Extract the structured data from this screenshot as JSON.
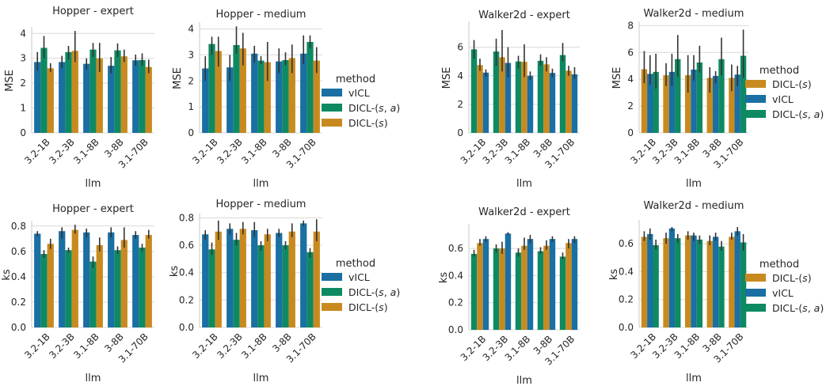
{
  "colors": {
    "vICL": "#1a6fa3",
    "DICL-(s,a)": "#0e8a63",
    "DICL-(s)": "#c88a1f",
    "err": "#333333",
    "grid": "#d9d9d9",
    "axis": "#c8c8c8"
  },
  "legend_title": "method",
  "legend_labels": {
    "vICL": "vICL",
    "DICL-(s,a)": "DICL-(s,a)",
    "DICL-(s)": "DICL-(s)"
  },
  "chart_data": [
    {
      "type": "bar",
      "title": "Hopper - expert",
      "xlabel": "llm",
      "ylabel": "MSE",
      "ylim": [
        0,
        4.2
      ],
      "yticks": [
        "0",
        "1",
        "2",
        "3",
        "4"
      ],
      "categories": [
        "3.2-1B",
        "3.2-3B",
        "3.1-8B",
        "3-8B",
        "3.1-70B"
      ],
      "series_order": [
        "vICL",
        "DICL-(s,a)",
        "DICL-(s)"
      ],
      "series": [
        {
          "key": "vICL",
          "values": [
            2.85,
            2.85,
            2.78,
            2.7,
            2.92
          ],
          "err": [
            [
              2.5,
              3.25
            ],
            [
              2.6,
              3.1
            ],
            [
              2.55,
              3.0
            ],
            [
              2.4,
              3.05
            ],
            [
              2.7,
              3.15
            ]
          ]
        },
        {
          "key": "DICL-(s,a)",
          "values": [
            3.42,
            3.25,
            3.35,
            3.32,
            2.93
          ],
          "err": [
            [
              3.0,
              3.9
            ],
            [
              2.95,
              3.5
            ],
            [
              3.05,
              3.62
            ],
            [
              3.05,
              3.6
            ],
            [
              2.7,
              3.2
            ]
          ]
        },
        {
          "key": "DICL-(s)",
          "values": [
            2.6,
            3.3,
            3.0,
            3.08,
            2.65
          ],
          "err": [
            [
              2.45,
              2.8
            ],
            [
              2.85,
              4.1
            ],
            [
              2.45,
              3.62
            ],
            [
              2.85,
              3.35
            ],
            [
              2.4,
              2.95
            ]
          ]
        }
      ]
    },
    {
      "type": "bar",
      "title": "Hopper - medium",
      "xlabel": "llm",
      "ylabel": "MSE",
      "ylim": [
        0,
        4.2
      ],
      "yticks": [
        "0",
        "1",
        "2",
        "3",
        "4"
      ],
      "categories": [
        "3.2-1B",
        "3.2-3B",
        "3.1-8B",
        "3-8B",
        "3.1-70B"
      ],
      "series_order": [
        "vICL",
        "DICL-(s,a)",
        "DICL-(s)"
      ],
      "series": [
        {
          "key": "vICL",
          "values": [
            2.48,
            2.52,
            3.05,
            2.75,
            3.05
          ],
          "err": [
            [
              2.0,
              2.95
            ],
            [
              2.0,
              3.0
            ],
            [
              2.7,
              3.35
            ],
            [
              2.3,
              3.25
            ],
            [
              2.65,
              3.75
            ]
          ]
        },
        {
          "key": "DICL-(s,a)",
          "values": [
            3.42,
            3.38,
            2.78,
            2.8,
            3.5
          ],
          "err": [
            [
              3.0,
              3.7
            ],
            [
              3.05,
              4.1
            ],
            [
              2.65,
              2.95
            ],
            [
              2.6,
              3.1
            ],
            [
              3.25,
              3.75
            ]
          ]
        },
        {
          "key": "DICL-(s)",
          "values": [
            3.15,
            3.25,
            2.72,
            2.88,
            2.78
          ],
          "err": [
            [
              2.55,
              3.7
            ],
            [
              2.6,
              3.85
            ],
            [
              2.0,
              3.5
            ],
            [
              2.3,
              3.4
            ],
            [
              2.3,
              3.3
            ]
          ]
        }
      ]
    },
    {
      "type": "bar",
      "title": "Walker2d - expert",
      "xlabel": "llm",
      "ylabel": "MSE",
      "ylim": [
        0,
        7.7
      ],
      "yticks": [
        "0",
        "2",
        "4",
        "6"
      ],
      "categories": [
        "3.2-1B",
        "3.2-3B",
        "3.1-8B",
        "3-8B",
        "3.1-70B"
      ],
      "series_order": [
        "DICL-(s,a)",
        "DICL-(s)",
        "vICL"
      ],
      "series": [
        {
          "key": "DICL-(s,a)",
          "values": [
            5.85,
            5.7,
            5.0,
            5.05,
            5.45
          ],
          "err": [
            [
              5.2,
              6.5
            ],
            [
              4.7,
              6.6
            ],
            [
              4.5,
              5.4
            ],
            [
              4.7,
              5.5
            ],
            [
              5.0,
              6.3
            ]
          ]
        },
        {
          "key": "DICL-(s)",
          "values": [
            4.75,
            5.3,
            4.98,
            4.8,
            4.35
          ],
          "err": [
            [
              4.35,
              5.2
            ],
            [
              4.3,
              7.2
            ],
            [
              3.9,
              6.2
            ],
            [
              4.3,
              5.3
            ],
            [
              4.0,
              4.7
            ]
          ]
        },
        {
          "key": "vICL",
          "values": [
            4.22,
            4.9,
            4.0,
            4.2,
            4.1
          ],
          "err": [
            [
              3.95,
              4.45
            ],
            [
              3.9,
              6.0
            ],
            [
              3.7,
              4.3
            ],
            [
              3.9,
              4.5
            ],
            [
              3.8,
              4.6
            ]
          ]
        }
      ]
    },
    {
      "type": "bar",
      "title": "Walker2d - medium",
      "xlabel": "llm",
      "ylabel": "MSE",
      "ylim": [
        0,
        8.2
      ],
      "yticks": [
        "0",
        "2",
        "4",
        "6",
        "8"
      ],
      "categories": [
        "3.2-1B",
        "3.2-3B",
        "3.1-8B",
        "3-8B",
        "3.1-70B"
      ],
      "series_order": [
        "DICL-(s)",
        "vICL",
        "DICL-(s,a)"
      ],
      "series": [
        {
          "key": "DICL-(s)",
          "values": [
            4.75,
            4.3,
            4.3,
            4.1,
            4.1
          ],
          "err": [
            [
              3.7,
              6.1
            ],
            [
              3.5,
              5.2
            ],
            [
              3.0,
              5.8
            ],
            [
              3.0,
              4.9
            ],
            [
              3.1,
              5.1
            ]
          ]
        },
        {
          "key": "vICL",
          "values": [
            4.4,
            4.55,
            4.72,
            4.25,
            4.35
          ],
          "err": [
            [
              3.6,
              5.8
            ],
            [
              3.5,
              5.9
            ],
            [
              3.9,
              5.8
            ],
            [
              3.7,
              4.6
            ],
            [
              3.5,
              5.0
            ]
          ]
        },
        {
          "key": "DICL-(s,a)",
          "values": [
            4.55,
            5.5,
            5.25,
            5.5,
            5.75
          ],
          "err": [
            [
              3.3,
              5.9
            ],
            [
              4.2,
              7.3
            ],
            [
              4.5,
              6.5
            ],
            [
              4.3,
              7.1
            ],
            [
              4.1,
              7.7
            ]
          ]
        }
      ]
    },
    {
      "type": "bar",
      "title": "Hopper - expert",
      "xlabel": "llm",
      "ylabel": "ks",
      "ylim": [
        0,
        0.83
      ],
      "yticks": [
        "0.0",
        "0.2",
        "0.4",
        "0.6",
        "0.8"
      ],
      "categories": [
        "3.2-1B",
        "3.2-3B",
        "3.1-8B",
        "3-8B",
        "3.1-70B"
      ],
      "series_order": [
        "vICL",
        "DICL-(s,a)",
        "DICL-(s)"
      ],
      "series": [
        {
          "key": "vICL",
          "values": [
            0.74,
            0.76,
            0.75,
            0.75,
            0.73
          ],
          "err": [
            [
              0.72,
              0.76
            ],
            [
              0.7,
              0.79
            ],
            [
              0.71,
              0.78
            ],
            [
              0.71,
              0.79
            ],
            [
              0.7,
              0.76
            ]
          ]
        },
        {
          "key": "DICL-(s,a)",
          "values": [
            0.58,
            0.61,
            0.52,
            0.61,
            0.63
          ],
          "err": [
            [
              0.55,
              0.61
            ],
            [
              0.59,
              0.63
            ],
            [
              0.47,
              0.56
            ],
            [
              0.58,
              0.64
            ],
            [
              0.6,
              0.66
            ]
          ]
        },
        {
          "key": "DICL-(s)",
          "values": [
            0.66,
            0.77,
            0.65,
            0.69,
            0.73
          ],
          "err": [
            [
              0.62,
              0.7
            ],
            [
              0.74,
              0.81
            ],
            [
              0.6,
              0.71
            ],
            [
              0.63,
              0.79
            ],
            [
              0.7,
              0.77
            ]
          ]
        }
      ]
    },
    {
      "type": "bar",
      "title": "Hopper - medium",
      "xlabel": "llm",
      "ylabel": "ks",
      "ylim": [
        0,
        0.82
      ],
      "yticks": [
        "0.0",
        "0.2",
        "0.4",
        "0.6",
        "0.8"
      ],
      "categories": [
        "3.2-1B",
        "3.2-3B",
        "3.1-8B",
        "3-8B",
        "3.1-70B"
      ],
      "series_order": [
        "vICL",
        "DICL-(s,a)",
        "DICL-(s)"
      ],
      "series": [
        {
          "key": "vICL",
          "values": [
            0.68,
            0.72,
            0.71,
            0.69,
            0.76
          ],
          "err": [
            [
              0.64,
              0.71
            ],
            [
              0.68,
              0.76
            ],
            [
              0.66,
              0.77
            ],
            [
              0.66,
              0.72
            ],
            [
              0.74,
              0.78
            ]
          ]
        },
        {
          "key": "DICL-(s,a)",
          "values": [
            0.57,
            0.64,
            0.6,
            0.6,
            0.55
          ],
          "err": [
            [
              0.53,
              0.62
            ],
            [
              0.6,
              0.69
            ],
            [
              0.56,
              0.63
            ],
            [
              0.57,
              0.63
            ],
            [
              0.51,
              0.58
            ]
          ]
        },
        {
          "key": "DICL-(s)",
          "values": [
            0.7,
            0.72,
            0.68,
            0.7,
            0.7
          ],
          "err": [
            [
              0.64,
              0.78
            ],
            [
              0.68,
              0.77
            ],
            [
              0.63,
              0.72
            ],
            [
              0.66,
              0.76
            ],
            [
              0.63,
              0.79
            ]
          ]
        }
      ]
    },
    {
      "type": "bar",
      "title": "Walker2d - expert",
      "xlabel": "llm",
      "ylabel": "ks",
      "ylim": [
        0,
        0.77
      ],
      "yticks": [
        "0.0",
        "0.2",
        "0.4",
        "0.6"
      ],
      "categories": [
        "3.2-1B",
        "3.2-3B",
        "3.1-8B",
        "3-8B",
        "3.1-70B"
      ],
      "series_order": [
        "DICL-(s,a)",
        "DICL-(s)",
        "vICL"
      ],
      "series": [
        {
          "key": "DICL-(s,a)",
          "values": [
            0.56,
            0.6,
            0.57,
            0.58,
            0.54
          ],
          "err": [
            [
              0.54,
              0.59
            ],
            [
              0.57,
              0.63
            ],
            [
              0.54,
              0.6
            ],
            [
              0.56,
              0.61
            ],
            [
              0.52,
              0.57
            ]
          ]
        },
        {
          "key": "DICL-(s)",
          "values": [
            0.64,
            0.6,
            0.62,
            0.62,
            0.64
          ],
          "err": [
            [
              0.62,
              0.67
            ],
            [
              0.56,
              0.65
            ],
            [
              0.59,
              0.68
            ],
            [
              0.59,
              0.66
            ],
            [
              0.6,
              0.67
            ]
          ]
        },
        {
          "key": "vICL",
          "values": [
            0.67,
            0.71,
            0.67,
            0.67,
            0.67
          ],
          "err": [
            [
              0.65,
              0.69
            ],
            [
              0.7,
              0.72
            ],
            [
              0.64,
              0.7
            ],
            [
              0.65,
              0.69
            ],
            [
              0.64,
              0.69
            ]
          ]
        }
      ]
    },
    {
      "type": "bar",
      "title": "Walker2d - medium",
      "xlabel": "llm",
      "ylabel": "ks",
      "ylim": [
        0,
        0.76
      ],
      "yticks": [
        "0.0",
        "0.2",
        "0.4",
        "0.6"
      ],
      "categories": [
        "3.2-1B",
        "3.2-3B",
        "3.1-8B",
        "3-8B",
        "3.1-70B"
      ],
      "series_order": [
        "DICL-(s)",
        "vICL",
        "DICL-(s,a)"
      ],
      "series": [
        {
          "key": "DICL-(s)",
          "values": [
            0.65,
            0.64,
            0.66,
            0.62,
            0.65
          ],
          "err": [
            [
              0.62,
              0.69
            ],
            [
              0.6,
              0.68
            ],
            [
              0.63,
              0.69
            ],
            [
              0.59,
              0.66
            ],
            [
              0.63,
              0.68
            ]
          ]
        },
        {
          "key": "vICL",
          "values": [
            0.67,
            0.71,
            0.66,
            0.65,
            0.69
          ],
          "err": [
            [
              0.63,
              0.71
            ],
            [
              0.69,
              0.72
            ],
            [
              0.62,
              0.68
            ],
            [
              0.62,
              0.68
            ],
            [
              0.66,
              0.72
            ]
          ]
        },
        {
          "key": "DICL-(s,a)",
          "values": [
            0.59,
            0.64,
            0.63,
            0.58,
            0.61
          ],
          "err": [
            [
              0.56,
              0.63
            ],
            [
              0.61,
              0.67
            ],
            [
              0.6,
              0.66
            ],
            [
              0.55,
              0.62
            ],
            [
              0.55,
              0.67
            ]
          ]
        }
      ]
    }
  ],
  "legends": [
    {
      "order": [
        "vICL",
        "DICL-(s,a)",
        "DICL-(s)"
      ]
    },
    {
      "order": [
        "DICL-(s)",
        "vICL",
        "DICL-(s,a)"
      ]
    },
    {
      "order": [
        "vICL",
        "DICL-(s,a)",
        "DICL-(s)"
      ]
    },
    {
      "order": [
        "DICL-(s)",
        "vICL",
        "DICL-(s,a)"
      ]
    }
  ]
}
